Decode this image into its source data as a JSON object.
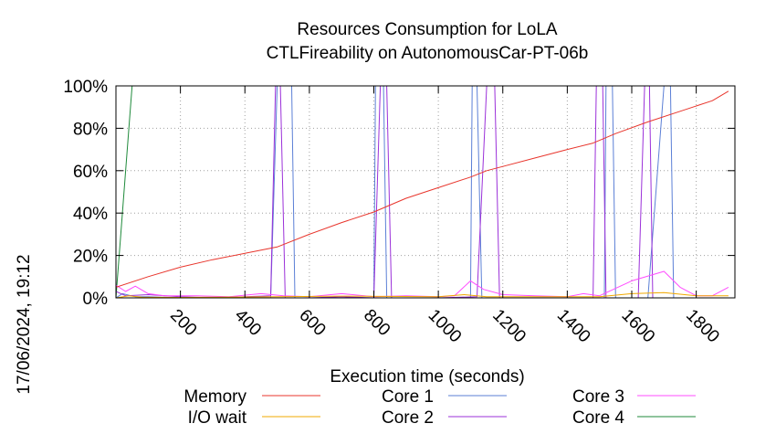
{
  "chart_data": {
    "type": "line",
    "title": "Resources Consumption for LoLA",
    "subtitle": "CTLFireability on AutonomousCar-PT-06b",
    "xlabel": "Execution time (seconds)",
    "timestamp": "17/06/2024, 19:12",
    "xlim": [
      0,
      1920
    ],
    "ylim": [
      0,
      100
    ],
    "xticks": [
      200,
      400,
      600,
      800,
      1000,
      1200,
      1400,
      1600,
      1800
    ],
    "yticks": [
      0,
      20,
      40,
      60,
      80,
      100
    ],
    "ytick_labels": [
      "0%",
      "20%",
      "40%",
      "60%",
      "80%",
      "100%"
    ],
    "grid": true,
    "legend_position": "bottom",
    "series": [
      {
        "name": "Memory",
        "color": "#e8352c",
        "points": [
          [
            0,
            5
          ],
          [
            100,
            10
          ],
          [
            200,
            14.5
          ],
          [
            300,
            18
          ],
          [
            400,
            21
          ],
          [
            500,
            24
          ],
          [
            600,
            30
          ],
          [
            700,
            35.5
          ],
          [
            800,
            40.5
          ],
          [
            900,
            47
          ],
          [
            1000,
            52
          ],
          [
            1100,
            57
          ],
          [
            1150,
            60
          ],
          [
            1200,
            62
          ],
          [
            1300,
            66
          ],
          [
            1400,
            70
          ],
          [
            1480,
            73
          ],
          [
            1550,
            77.5
          ],
          [
            1650,
            83
          ],
          [
            1750,
            88
          ],
          [
            1850,
            93
          ],
          [
            1900,
            97.5
          ]
        ]
      },
      {
        "name": "I/O wait",
        "color": "#f0a800",
        "points": [
          [
            0,
            0
          ],
          [
            40,
            1
          ],
          [
            80,
            0.3
          ],
          [
            200,
            0.2
          ],
          [
            500,
            0.5
          ],
          [
            700,
            0.8
          ],
          [
            1000,
            0.5
          ],
          [
            1080,
            1.5
          ],
          [
            1150,
            0.5
          ],
          [
            1500,
            0.5
          ],
          [
            1600,
            2
          ],
          [
            1700,
            2.5
          ],
          [
            1800,
            1
          ],
          [
            1900,
            1
          ]
        ]
      },
      {
        "name": "Core 1",
        "color": "#5b7fd6",
        "points": [
          [
            0,
            0
          ],
          [
            20,
            2
          ],
          [
            60,
            0.5
          ],
          [
            100,
            0.5
          ],
          [
            200,
            0
          ],
          [
            300,
            0
          ],
          [
            400,
            0
          ],
          [
            480,
            0
          ],
          [
            500,
            100
          ],
          [
            545,
            100
          ],
          [
            555,
            0
          ],
          [
            600,
            0
          ],
          [
            700,
            0
          ],
          [
            800,
            0
          ],
          [
            805,
            100
          ],
          [
            830,
            100
          ],
          [
            840,
            0
          ],
          [
            1000,
            0
          ],
          [
            1100,
            0
          ],
          [
            1105,
            100
          ],
          [
            1120,
            100
          ],
          [
            1135,
            0
          ],
          [
            1200,
            0
          ],
          [
            1400,
            0
          ],
          [
            1515,
            0
          ],
          [
            1520,
            100
          ],
          [
            1540,
            100
          ],
          [
            1550,
            0
          ],
          [
            1650,
            0
          ],
          [
            1700,
            100
          ],
          [
            1720,
            100
          ],
          [
            1730,
            0
          ],
          [
            1800,
            0
          ],
          [
            1900,
            0
          ]
        ]
      },
      {
        "name": "Core 2",
        "color": "#9b30d9",
        "points": [
          [
            0,
            3
          ],
          [
            30,
            1
          ],
          [
            100,
            1.5
          ],
          [
            200,
            0.5
          ],
          [
            300,
            0
          ],
          [
            400,
            0.5
          ],
          [
            480,
            1
          ],
          [
            495,
            100
          ],
          [
            510,
            100
          ],
          [
            525,
            0
          ],
          [
            600,
            0
          ],
          [
            700,
            0.5
          ],
          [
            800,
            0
          ],
          [
            820,
            100
          ],
          [
            840,
            100
          ],
          [
            855,
            0
          ],
          [
            1000,
            0
          ],
          [
            1120,
            0.5
          ],
          [
            1150,
            100
          ],
          [
            1175,
            100
          ],
          [
            1190,
            0
          ],
          [
            1300,
            0
          ],
          [
            1400,
            0
          ],
          [
            1480,
            0
          ],
          [
            1490,
            100
          ],
          [
            1510,
            100
          ],
          [
            1520,
            0
          ],
          [
            1620,
            0
          ],
          [
            1640,
            100
          ],
          [
            1655,
            100
          ],
          [
            1665,
            0
          ],
          [
            1800,
            0
          ],
          [
            1900,
            0
          ]
        ]
      },
      {
        "name": "Core 3",
        "color": "#ff4cff",
        "points": [
          [
            0,
            6
          ],
          [
            30,
            3
          ],
          [
            60,
            5.5
          ],
          [
            100,
            2
          ],
          [
            150,
            1
          ],
          [
            250,
            1
          ],
          [
            350,
            0.5
          ],
          [
            450,
            2
          ],
          [
            520,
            1
          ],
          [
            600,
            0.5
          ],
          [
            700,
            2
          ],
          [
            800,
            0.5
          ],
          [
            900,
            1
          ],
          [
            1000,
            0.5
          ],
          [
            1050,
            1
          ],
          [
            1100,
            8
          ],
          [
            1140,
            4
          ],
          [
            1200,
            1.5
          ],
          [
            1300,
            1
          ],
          [
            1400,
            0.5
          ],
          [
            1450,
            2
          ],
          [
            1500,
            1
          ],
          [
            1600,
            8
          ],
          [
            1700,
            12.5
          ],
          [
            1750,
            5
          ],
          [
            1800,
            1
          ],
          [
            1850,
            1
          ],
          [
            1900,
            5
          ]
        ]
      },
      {
        "name": "Core 4",
        "color": "#1f8a3b",
        "points": [
          [
            0,
            0
          ],
          [
            50,
            100
          ],
          [
            200,
            100
          ],
          [
            400,
            100
          ],
          [
            600,
            100
          ],
          [
            800,
            100
          ],
          [
            1000,
            100
          ],
          [
            1200,
            100
          ],
          [
            1400,
            100
          ],
          [
            1600,
            100
          ],
          [
            1800,
            100
          ],
          [
            1900,
            100
          ]
        ]
      }
    ]
  }
}
